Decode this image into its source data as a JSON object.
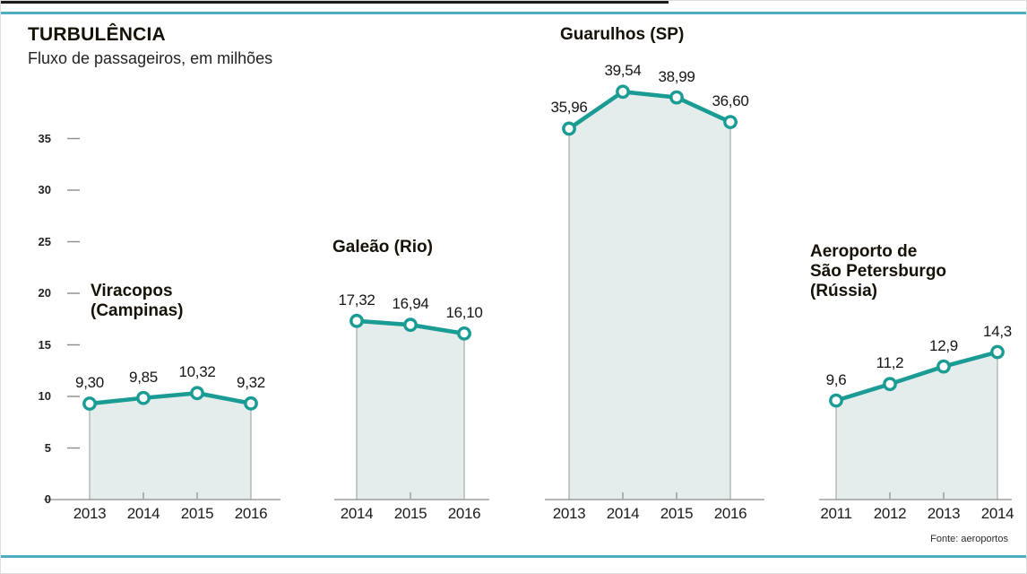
{
  "header": {
    "title": "TURBULÊNCIA",
    "subtitle": "Fluxo de passageiros, em milhões"
  },
  "source": "Fonte: aeroportos",
  "colors": {
    "line": "#1a9c94",
    "marker_fill": "#ffffff",
    "area": "#e4edec",
    "area_edge": "#a5abab",
    "axis": "#8c8c8c",
    "rule": "#4fadc2",
    "top_bar": "#1c1c1a",
    "text": "#1f1f1f"
  },
  "chart_data": {
    "type": "area",
    "title": "TURBULÊNCIA",
    "subtitle": "Fluxo de passageiros, em milhões",
    "ylabel": "",
    "xlabel": "",
    "grid": false,
    "legend": false,
    "y_axis": {
      "ticks": [
        0,
        5,
        10,
        15,
        20,
        25,
        30,
        35
      ],
      "range": [
        0,
        40
      ]
    },
    "charts": [
      {
        "title": "Viracopos (Campinas)",
        "title_lines": "Viracopos\n(Campinas)",
        "years": [
          "2013",
          "2014",
          "2015",
          "2016"
        ],
        "values": [
          9.3,
          9.85,
          10.32,
          9.32
        ],
        "labels": [
          "9,30",
          "9,85",
          "10,32",
          "9,32"
        ]
      },
      {
        "title": "Galeão (Rio)",
        "title_lines": "Galeão (Rio)",
        "years": [
          "2014",
          "2015",
          "2016"
        ],
        "values": [
          17.32,
          16.94,
          16.1
        ],
        "labels": [
          "17,32",
          "16,94",
          "16,10"
        ]
      },
      {
        "title": "Guarulhos (SP)",
        "title_lines": "Guarulhos (SP)",
        "years": [
          "2013",
          "2014",
          "2015",
          "2016"
        ],
        "values": [
          35.96,
          39.54,
          38.99,
          36.6
        ],
        "labels": [
          "35,96",
          "39,54",
          "38,99",
          "36,60"
        ]
      },
      {
        "title": "Aeroporto de São Petersburgo (Rússia)",
        "title_lines": "Aeroporto de\nSão Petersburgo\n(Rússia)",
        "years": [
          "2011",
          "2012",
          "2013",
          "2014"
        ],
        "values": [
          9.6,
          11.2,
          12.9,
          14.3
        ],
        "labels": [
          "9,6",
          "11,2",
          "12,9",
          "14,3"
        ]
      }
    ]
  }
}
